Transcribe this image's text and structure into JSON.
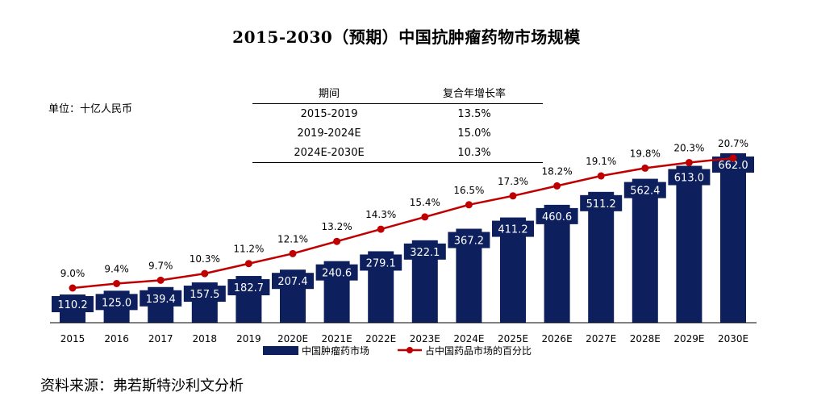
{
  "title": "2015-2030（预期）中国抗肿瘤药物市场规模",
  "unit_label": "单位：十亿人民币",
  "source": "资料来源：弗若斯特沙利文分析",
  "cagr_table": {
    "headers": [
      "期间",
      "复合年增长率"
    ],
    "rows": [
      [
        "2015-2019",
        "13.5%"
      ],
      [
        "2019-2024E",
        "15.0%"
      ],
      [
        "2024E-2030E",
        "10.3%"
      ]
    ]
  },
  "colors": {
    "bar": "#0d1f5c",
    "line": "#c00000",
    "bar_label": "#ffffff",
    "axis": "#000000"
  },
  "chart_data": {
    "type": "bar",
    "title": "2015-2030（预期）中国抗肿瘤药物市场规模",
    "categories": [
      "2015",
      "2016",
      "2017",
      "2018",
      "2019",
      "2020E",
      "2021E",
      "2022E",
      "2023E",
      "2024E",
      "2025E",
      "2026E",
      "2027E",
      "2028E",
      "2029E",
      "2030E"
    ],
    "series": [
      {
        "name": "中国肿瘤药市场",
        "type": "bar",
        "values": [
          110.2,
          125.0,
          139.4,
          157.5,
          182.7,
          207.4,
          240.6,
          279.1,
          322.1,
          367.2,
          411.2,
          460.6,
          511.2,
          562.4,
          613.0,
          662.0
        ],
        "labels": [
          "110.2",
          "125.0",
          "139.4",
          "157.5",
          "182.7",
          "207.4",
          "240.6",
          "279.1",
          "322.1",
          "367.2",
          "411.2",
          "460.6",
          "511.2",
          "562.4",
          "613.0",
          "662.0"
        ]
      },
      {
        "name": "占中国药品市场的百分比",
        "type": "line",
        "values": [
          9.0,
          9.4,
          9.7,
          10.3,
          11.2,
          12.1,
          13.2,
          14.3,
          15.4,
          16.5,
          17.3,
          18.2,
          19.1,
          19.8,
          20.3,
          20.7
        ],
        "labels": [
          "9.0%",
          "9.4%",
          "9.7%",
          "10.3%",
          "11.2%",
          "12.1%",
          "13.2%",
          "14.3%",
          "15.4%",
          "16.5%",
          "17.3%",
          "18.2%",
          "19.1%",
          "19.8%",
          "20.3%",
          "20.7%"
        ]
      }
    ],
    "xlabel": "",
    "ylabel": "",
    "ylim": [
      0,
      662
    ],
    "y2lim": [
      0,
      20.7
    ],
    "legend": "bottom-center",
    "grid": false
  }
}
